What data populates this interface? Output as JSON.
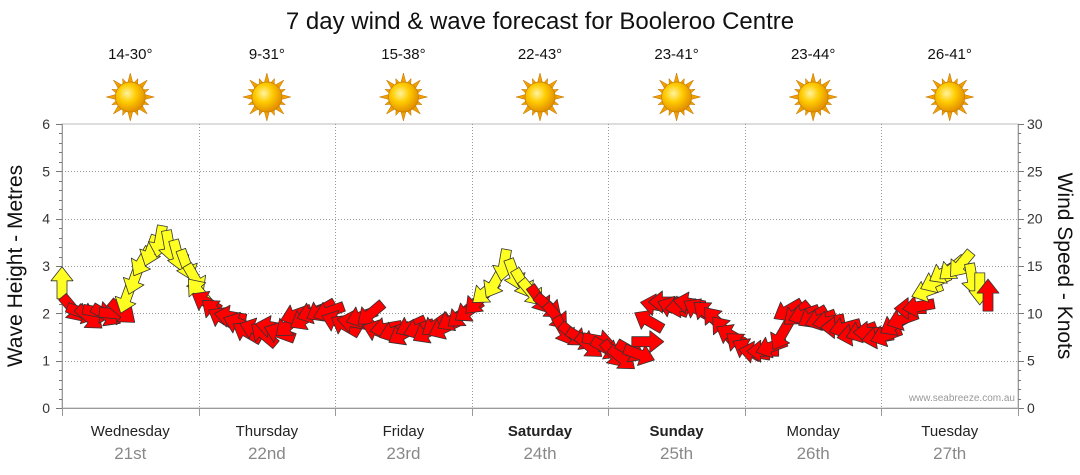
{
  "title": "7 day wind & wave forecast for Booleroo Centre",
  "credit": "www.seabreeze.com.au",
  "colors": {
    "yellow": "#ffff22",
    "red": "#ff0000",
    "outline": "#333333",
    "grid": "#999999",
    "sun": "#f5a800"
  },
  "days": [
    {
      "name": "Wednesday",
      "date": "21st",
      "temp": "14-30°",
      "bold": false
    },
    {
      "name": "Thursday",
      "date": "22nd",
      "temp": "9-31°",
      "bold": false
    },
    {
      "name": "Friday",
      "date": "23rd",
      "temp": "15-38°",
      "bold": false
    },
    {
      "name": "Saturday",
      "date": "24th",
      "temp": "22-43°",
      "bold": true
    },
    {
      "name": "Sunday",
      "date": "25th",
      "temp": "23-41°",
      "bold": true
    },
    {
      "name": "Monday",
      "date": "26th",
      "temp": "23-44°",
      "bold": false
    },
    {
      "name": "Tuesday",
      "date": "27th",
      "temp": "26-41°",
      "bold": false
    }
  ],
  "chart_data": {
    "type": "line",
    "title": "7 day wind & wave forecast for Booleroo Centre",
    "ylabel_left": "Wave Height - Metres",
    "ylabel_right": "Wind Speed - Knots",
    "ylim_left": [
      0,
      6
    ],
    "ylim_right": [
      0,
      30
    ],
    "yticks_left": [
      "0",
      "1",
      "2",
      "3",
      "4",
      "5",
      "6"
    ],
    "yticks_right": [
      "0",
      "5",
      "10",
      "15",
      "20",
      "25",
      "30"
    ],
    "x_unit": "days from start of Wednesday",
    "series": [
      {
        "name": "Wind Speed (knots)",
        "points": [
          [
            0.0,
            12.8,
            0
          ],
          [
            0.06,
            10.8,
            140
          ],
          [
            0.12,
            10.2,
            110
          ],
          [
            0.18,
            9.8,
            130
          ],
          [
            0.24,
            10.2,
            100
          ],
          [
            0.3,
            10.0,
            120
          ],
          [
            0.36,
            10.0,
            95
          ],
          [
            0.42,
            10.4,
            130
          ],
          [
            0.48,
            12.0,
            200
          ],
          [
            0.54,
            14.0,
            200
          ],
          [
            0.6,
            15.8,
            210
          ],
          [
            0.66,
            17.0,
            200
          ],
          [
            0.72,
            18.0,
            190
          ],
          [
            0.78,
            17.5,
            170
          ],
          [
            0.84,
            16.5,
            165
          ],
          [
            0.9,
            15.5,
            160
          ],
          [
            0.96,
            14.0,
            150
          ],
          [
            1.02,
            12.0,
            320
          ],
          [
            1.08,
            11.0,
            300
          ],
          [
            1.14,
            10.0,
            310
          ],
          [
            1.2,
            9.3,
            300
          ],
          [
            1.26,
            9.6,
            280
          ],
          [
            1.32,
            8.8,
            290
          ],
          [
            1.38,
            7.8,
            300
          ],
          [
            1.44,
            8.2,
            290
          ],
          [
            1.5,
            7.5,
            310
          ],
          [
            1.56,
            8.5,
            280
          ],
          [
            1.62,
            7.8,
            290
          ],
          [
            1.68,
            9.0,
            230
          ],
          [
            1.74,
            10.0,
            250
          ],
          [
            1.8,
            9.6,
            240
          ],
          [
            1.86,
            10.2,
            250
          ],
          [
            1.92,
            10.5,
            240
          ],
          [
            1.98,
            10.3,
            250
          ],
          [
            2.04,
            9.0,
            290
          ],
          [
            2.1,
            8.5,
            300
          ],
          [
            2.16,
            9.0,
            280
          ],
          [
            2.22,
            9.8,
            250
          ],
          [
            2.28,
            10.2,
            230
          ],
          [
            2.34,
            8.0,
            290
          ],
          [
            2.4,
            8.5,
            260
          ],
          [
            2.46,
            8.2,
            250
          ],
          [
            2.52,
            8.0,
            240
          ],
          [
            2.58,
            8.8,
            245
          ],
          [
            2.64,
            8.5,
            250
          ],
          [
            2.7,
            8.2,
            240
          ],
          [
            2.76,
            9.0,
            235
          ],
          [
            2.82,
            8.6,
            245
          ],
          [
            2.88,
            9.5,
            240
          ],
          [
            2.94,
            10.0,
            230
          ],
          [
            3.0,
            10.5,
            235
          ],
          [
            3.06,
            11.5,
            225
          ],
          [
            3.12,
            12.5,
            230
          ],
          [
            3.18,
            13.5,
            210
          ],
          [
            3.24,
            15.5,
            190
          ],
          [
            3.3,
            14.5,
            160
          ],
          [
            3.36,
            13.5,
            150
          ],
          [
            3.42,
            12.5,
            140
          ],
          [
            3.48,
            11.8,
            145
          ],
          [
            3.54,
            11.0,
            130
          ],
          [
            3.6,
            10.0,
            140
          ],
          [
            3.66,
            8.5,
            150
          ],
          [
            3.72,
            8.0,
            130
          ],
          [
            3.78,
            7.5,
            120
          ],
          [
            3.84,
            6.8,
            130
          ],
          [
            3.9,
            7.2,
            100
          ],
          [
            3.96,
            6.5,
            120
          ],
          [
            4.02,
            6.0,
            140
          ],
          [
            4.08,
            5.5,
            130
          ],
          [
            4.14,
            6.2,
            120
          ],
          [
            4.2,
            5.8,
            110
          ],
          [
            4.26,
            7.0,
            90
          ],
          [
            4.32,
            9.0,
            300
          ],
          [
            4.38,
            10.8,
            280
          ],
          [
            4.44,
            11.2,
            270
          ],
          [
            4.5,
            10.5,
            290
          ],
          [
            4.56,
            10.8,
            260
          ],
          [
            4.62,
            11.0,
            280
          ],
          [
            4.68,
            10.2,
            300
          ],
          [
            4.74,
            9.8,
            310
          ],
          [
            4.8,
            9.0,
            320
          ],
          [
            4.86,
            8.0,
            320
          ],
          [
            4.92,
            7.5,
            300
          ],
          [
            4.98,
            6.5,
            310
          ],
          [
            5.04,
            6.0,
            300
          ],
          [
            5.1,
            5.8,
            280
          ],
          [
            5.16,
            6.0,
            270
          ],
          [
            5.22,
            6.6,
            250
          ],
          [
            5.28,
            8.0,
            210
          ],
          [
            5.34,
            10.5,
            240
          ],
          [
            5.4,
            10.2,
            230
          ],
          [
            5.46,
            10.0,
            250
          ],
          [
            5.52,
            9.8,
            240
          ],
          [
            5.58,
            9.5,
            250
          ],
          [
            5.64,
            9.2,
            260
          ],
          [
            5.7,
            8.5,
            270
          ],
          [
            5.76,
            8.6,
            255
          ],
          [
            5.82,
            7.8,
            260
          ],
          [
            5.88,
            8.2,
            250
          ],
          [
            5.94,
            8.0,
            270
          ],
          [
            6.0,
            7.5,
            260
          ],
          [
            6.06,
            7.8,
            250
          ],
          [
            6.12,
            9.0,
            240
          ],
          [
            6.18,
            9.5,
            250
          ],
          [
            6.24,
            10.5,
            270
          ],
          [
            6.3,
            10.8,
            260
          ],
          [
            6.36,
            12.5,
            250
          ],
          [
            6.42,
            13.5,
            245
          ],
          [
            6.48,
            14.5,
            240
          ],
          [
            6.54,
            15.0,
            230
          ],
          [
            6.6,
            15.5,
            220
          ],
          [
            6.66,
            14.0,
            170
          ],
          [
            6.72,
            13.0,
            180
          ],
          [
            6.78,
            11.5,
            0
          ]
        ]
      }
    ]
  }
}
